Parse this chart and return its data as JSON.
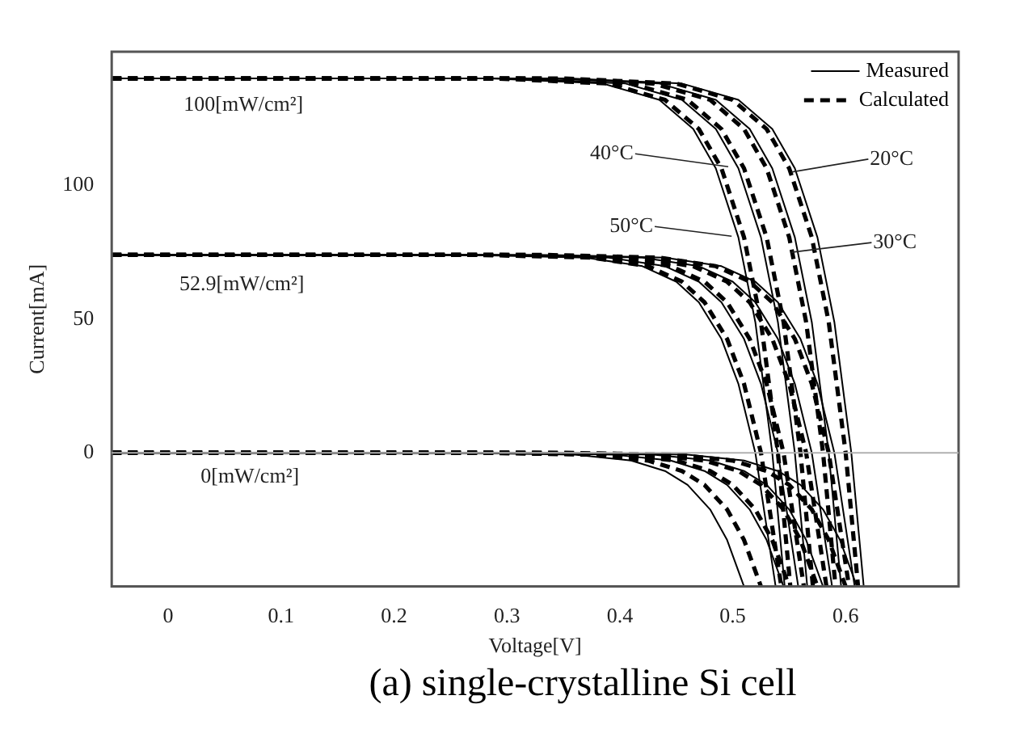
{
  "chart_data": {
    "type": "line",
    "xlabel": "Voltage[V]",
    "ylabel": "Current[mA]",
    "xlim": [
      -0.05,
      0.7
    ],
    "ylim": [
      -50,
      150
    ],
    "xticks": [
      0,
      0.1,
      0.2,
      0.3,
      0.4,
      0.5,
      0.6
    ],
    "yticks": [
      0,
      50,
      100
    ],
    "grid": false,
    "legend": "top right",
    "marker": "none",
    "ref_lines": [
      {
        "axis": "y",
        "value": 0,
        "color": "#b0b0b0"
      }
    ],
    "annotations": [
      "100[mW/cm²]",
      "52.9[mW/cm²]",
      "0[mW/cm²]",
      {
        "text": "40°C",
        "x": 0.496,
        "y": 107
      },
      {
        "text": "20°C",
        "x": 0.552,
        "y": 105
      },
      {
        "text": "50°C",
        "x": 0.499,
        "y": 81
      },
      {
        "text": "30°C",
        "x": 0.552,
        "y": 75
      },
      "(a) single-crystalline Si cell"
    ],
    "series": [
      {
        "name": "Measured",
        "color": "#000000",
        "line_style": "solid",
        "x": [
          -0.05,
          0.355,
          0.455,
          0.505,
          0.535,
          0.555,
          0.575,
          0.59,
          0.605,
          0.616
        ],
        "values": [
          140,
          140,
          138.1,
          132,
          121.1,
          106.4,
          80.6,
          48.9,
          0,
          -50
        ]
      },
      {
        "color": "#000000",
        "line_style": "solid",
        "x": [
          -0.05,
          0.335,
          0.435,
          0.485,
          0.515,
          0.535,
          0.555,
          0.57,
          0.585,
          0.596
        ],
        "values": [
          140,
          140,
          138.1,
          132,
          121.1,
          106.4,
          80.6,
          48.9,
          0,
          -50
        ]
      },
      {
        "color": "#000000",
        "line_style": "solid",
        "x": [
          -0.05,
          0.305,
          0.405,
          0.455,
          0.485,
          0.505,
          0.525,
          0.54,
          0.555,
          0.566
        ],
        "values": [
          140,
          140,
          138.1,
          132,
          121.1,
          106.4,
          80.6,
          48.9,
          0,
          -50
        ]
      },
      {
        "color": "#000000",
        "line_style": "solid",
        "x": [
          -0.05,
          0.285,
          0.385,
          0.435,
          0.465,
          0.485,
          0.505,
          0.52,
          0.535,
          0.546
        ],
        "values": [
          140,
          140,
          138.1,
          132,
          121.1,
          106.4,
          80.6,
          48.9,
          0,
          -50
        ]
      },
      {
        "name": "Calculated",
        "color": "#000000",
        "line_style": "dashed",
        "x": [
          -0.05,
          0.35,
          0.45,
          0.5,
          0.53,
          0.55,
          0.57,
          0.585,
          0.6,
          0.611
        ],
        "values": [
          140,
          140,
          138.1,
          132,
          121.1,
          106.4,
          80.6,
          48.9,
          0,
          -50
        ]
      },
      {
        "color": "#000000",
        "line_style": "dashed",
        "x": [
          -0.05,
          0.33,
          0.43,
          0.48,
          0.51,
          0.53,
          0.55,
          0.565,
          0.58,
          0.591
        ],
        "values": [
          140,
          140,
          138.1,
          132,
          121.1,
          106.4,
          80.6,
          48.9,
          0,
          -50
        ]
      },
      {
        "color": "#000000",
        "line_style": "dashed",
        "x": [
          -0.05,
          0.31,
          0.41,
          0.46,
          0.49,
          0.51,
          0.53,
          0.545,
          0.56,
          0.571
        ],
        "values": [
          140,
          140,
          138.1,
          132,
          121.1,
          106.4,
          80.6,
          48.9,
          0,
          -50
        ]
      },
      {
        "color": "#000000",
        "line_style": "dashed",
        "x": [
          -0.05,
          0.29,
          0.39,
          0.44,
          0.47,
          0.49,
          0.51,
          0.525,
          0.54,
          0.551
        ],
        "values": [
          140,
          140,
          138.1,
          132,
          121.1,
          106.4,
          80.6,
          48.9,
          0,
          -50
        ]
      },
      {
        "color": "#000000",
        "line_style": "solid",
        "x": [
          -0.05,
          0.34,
          0.44,
          0.49,
          0.52,
          0.54,
          0.56,
          0.575,
          0.59,
          0.608
        ],
        "values": [
          74,
          74,
          73,
          69.8,
          64,
          56.3,
          42.6,
          25.8,
          0,
          -50
        ]
      },
      {
        "color": "#000000",
        "line_style": "solid",
        "x": [
          -0.05,
          0.32,
          0.42,
          0.47,
          0.5,
          0.52,
          0.54,
          0.555,
          0.57,
          0.588
        ],
        "values": [
          74,
          74,
          73,
          69.8,
          64,
          56.3,
          42.6,
          25.8,
          0,
          -50
        ]
      },
      {
        "color": "#000000",
        "line_style": "solid",
        "x": [
          -0.05,
          0.29,
          0.39,
          0.44,
          0.47,
          0.49,
          0.51,
          0.525,
          0.54,
          0.558
        ],
        "values": [
          74,
          74,
          73,
          69.8,
          64,
          56.3,
          42.6,
          25.8,
          0,
          -50
        ]
      },
      {
        "color": "#000000",
        "line_style": "solid",
        "x": [
          -0.05,
          0.27,
          0.37,
          0.42,
          0.45,
          0.47,
          0.49,
          0.505,
          0.52,
          0.538
        ],
        "values": [
          74,
          74,
          73,
          69.8,
          64,
          56.3,
          42.6,
          25.8,
          0,
          -50
        ]
      },
      {
        "color": "#000000",
        "line_style": "dashed",
        "x": [
          -0.05,
          0.335,
          0.435,
          0.485,
          0.515,
          0.535,
          0.555,
          0.57,
          0.585,
          0.603
        ],
        "values": [
          74,
          74,
          73,
          69.8,
          64,
          56.3,
          42.6,
          25.8,
          0,
          -50
        ]
      },
      {
        "color": "#000000",
        "line_style": "dashed",
        "x": [
          -0.05,
          0.315,
          0.415,
          0.465,
          0.495,
          0.515,
          0.535,
          0.55,
          0.565,
          0.583
        ],
        "values": [
          74,
          74,
          73,
          69.8,
          64,
          56.3,
          42.6,
          25.8,
          0,
          -50
        ]
      },
      {
        "color": "#000000",
        "line_style": "dashed",
        "x": [
          -0.05,
          0.295,
          0.395,
          0.445,
          0.475,
          0.495,
          0.515,
          0.53,
          0.545,
          0.563
        ],
        "values": [
          74,
          74,
          73,
          69.8,
          64,
          56.3,
          42.6,
          25.8,
          0,
          -50
        ]
      },
      {
        "color": "#000000",
        "line_style": "dashed",
        "x": [
          -0.05,
          0.275,
          0.375,
          0.425,
          0.455,
          0.475,
          0.495,
          0.51,
          0.525,
          0.543
        ],
        "values": [
          74,
          74,
          73,
          69.8,
          64,
          56.3,
          42.6,
          25.8,
          0,
          -50
        ]
      },
      {
        "color": "#000000",
        "line_style": "solid",
        "x": [
          -0.05,
          0.36,
          0.46,
          0.51,
          0.54,
          0.56,
          0.58,
          0.595,
          0.61
        ],
        "values": [
          0,
          0,
          -0.7,
          -2.9,
          -6.8,
          -12,
          -21.2,
          -32.6,
          -50
        ]
      },
      {
        "color": "#000000",
        "line_style": "solid",
        "x": [
          -0.05,
          0.33,
          0.43,
          0.48,
          0.51,
          0.53,
          0.55,
          0.565,
          0.58
        ],
        "values": [
          0,
          0,
          -0.7,
          -2.9,
          -6.8,
          -12,
          -21.2,
          -32.6,
          -50
        ]
      },
      {
        "color": "#000000",
        "line_style": "solid",
        "x": [
          -0.05,
          0.295,
          0.395,
          0.445,
          0.475,
          0.495,
          0.515,
          0.53,
          0.545
        ],
        "values": [
          0,
          0,
          -0.7,
          -2.9,
          -6.8,
          -12,
          -21.2,
          -32.6,
          -50
        ]
      },
      {
        "color": "#000000",
        "line_style": "solid",
        "x": [
          -0.05,
          0.26,
          0.36,
          0.41,
          0.44,
          0.46,
          0.48,
          0.495,
          0.51
        ],
        "values": [
          0,
          0,
          -0.7,
          -2.9,
          -6.8,
          -12,
          -21.2,
          -32.6,
          -50
        ]
      },
      {
        "color": "#000000",
        "line_style": "dashed",
        "x": [
          -0.05,
          0.35,
          0.45,
          0.5,
          0.53,
          0.55,
          0.57,
          0.585,
          0.6
        ],
        "values": [
          0,
          0,
          -0.7,
          -2.9,
          -6.8,
          -12,
          -21.2,
          -32.6,
          -50
        ]
      },
      {
        "color": "#000000",
        "line_style": "dashed",
        "x": [
          -0.05,
          0.325,
          0.425,
          0.475,
          0.505,
          0.525,
          0.545,
          0.56,
          0.575
        ],
        "values": [
          0,
          0,
          -0.7,
          -2.9,
          -6.8,
          -12,
          -21.2,
          -32.6,
          -50
        ]
      },
      {
        "color": "#000000",
        "line_style": "dashed",
        "x": [
          -0.05,
          0.3,
          0.4,
          0.45,
          0.48,
          0.5,
          0.52,
          0.535,
          0.55
        ],
        "values": [
          0,
          0,
          -0.7,
          -2.9,
          -6.8,
          -12,
          -21.2,
          -32.6,
          -50
        ]
      },
      {
        "color": "#000000",
        "line_style": "dashed",
        "x": [
          -0.05,
          0.275,
          0.375,
          0.425,
          0.455,
          0.475,
          0.495,
          0.51,
          0.525
        ],
        "values": [
          0,
          0,
          -0.7,
          -2.9,
          -6.8,
          -12,
          -21.2,
          -32.6,
          -50
        ]
      }
    ]
  }
}
